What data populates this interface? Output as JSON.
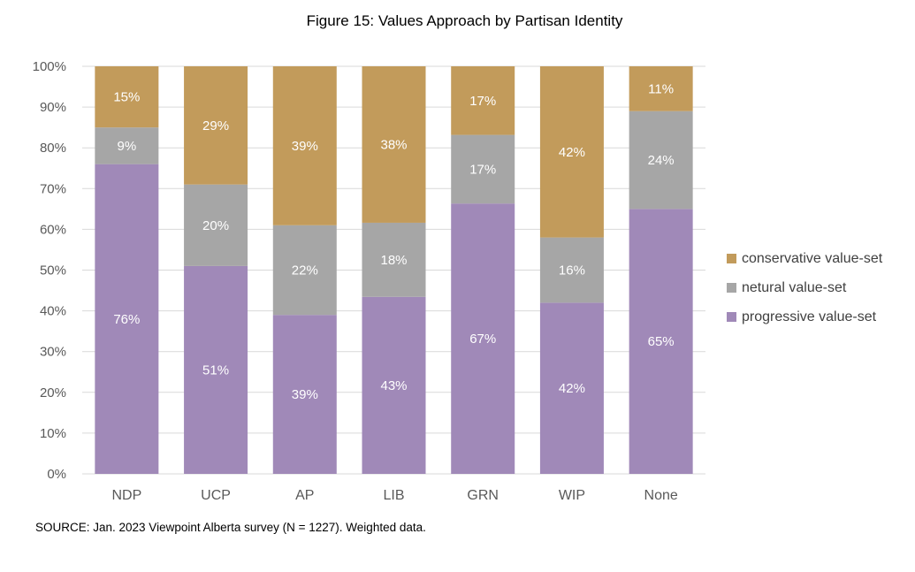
{
  "chart_data": {
    "type": "bar",
    "stacked": true,
    "title": "Figure 15: Values Approach by Partisan Identity",
    "categories": [
      "NDP",
      "UCP",
      "AP",
      "LIB",
      "GRN",
      "WIP",
      "None"
    ],
    "series": [
      {
        "name": "progressive value-set",
        "color": "#A089B8",
        "values": [
          76,
          51,
          39,
          43,
          67,
          42,
          65
        ],
        "labels": [
          "76%",
          "51%",
          "39%",
          "43%",
          "67%",
          "42%",
          "65%"
        ]
      },
      {
        "name": "netural value-set",
        "color": "#A6A6A6",
        "values": [
          9,
          20,
          22,
          18,
          17,
          16,
          24
        ],
        "labels": [
          "9%",
          "20%",
          "22%",
          "18%",
          "17%",
          "16%",
          "24%"
        ]
      },
      {
        "name": "conservative value-set",
        "color": "#C29B5B",
        "values": [
          15,
          29,
          39,
          38,
          17,
          42,
          11
        ],
        "labels": [
          "15%",
          "29%",
          "39%",
          "38%",
          "17%",
          "42%",
          "11%"
        ]
      }
    ],
    "ylim": [
      0,
      100
    ],
    "yticks": [
      "0%",
      "10%",
      "20%",
      "30%",
      "40%",
      "50%",
      "60%",
      "70%",
      "80%",
      "90%",
      "100%"
    ],
    "grid": true,
    "legend_position": "right",
    "legend_order": [
      "conservative value-set",
      "netural value-set",
      "progressive value-set"
    ],
    "source": "SOURCE: Jan. 2023 Viewpoint Alberta survey (N = 1227). Weighted data."
  }
}
